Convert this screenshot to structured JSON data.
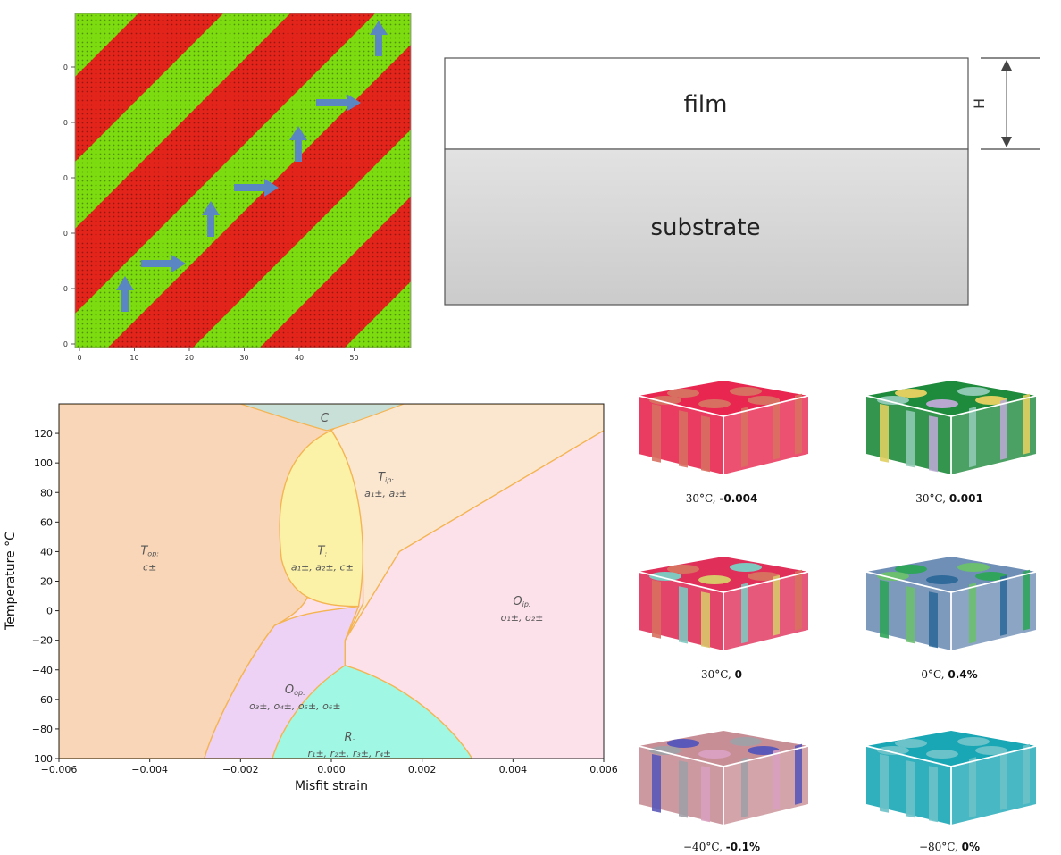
{
  "stripe_panel": {
    "x_ticks": [
      "0",
      "10",
      "20",
      "30",
      "40",
      "50"
    ],
    "y_ticks": [
      "0",
      "0",
      "0",
      "0",
      "0",
      "0",
      "0"
    ],
    "colors": {
      "red": "#e3241b",
      "green": "#7cdc10",
      "arrow": "#5a86c4"
    }
  },
  "schematic": {
    "film_label": "film",
    "substrate_label": "substrate",
    "thickness_label": "H",
    "colors": {
      "film": "#ffffff",
      "substrate": "#d5d5d5"
    }
  },
  "chart_data": {
    "type": "phase_diagram",
    "xlabel": "Misfit strain",
    "ylabel": "Temperature °C",
    "xlim": [
      -0.006,
      0.006
    ],
    "ylim": [
      -100,
      140
    ],
    "x_ticks": [
      "−0.006",
      "−0.004",
      "−0.002",
      "0.000",
      "0.002",
      "0.004",
      "0.006"
    ],
    "y_ticks": [
      "−100",
      "−80",
      "−60",
      "−40",
      "−20",
      "0",
      "20",
      "40",
      "60",
      "80",
      "100",
      "120"
    ],
    "phases": [
      {
        "name": "C",
        "sub": "",
        "line1": "",
        "color": "#c8e0d8"
      },
      {
        "name": "T",
        "sub": "op:",
        "line1": "c±",
        "color": "#f9d6b8"
      },
      {
        "name": "T",
        "sub": ":",
        "line1": "a₁±, a₂±, c±",
        "color": "#fbf2a8"
      },
      {
        "name": "T",
        "sub": "ip:",
        "line1": "a₁±, a₂±",
        "color": "#fbe7d0"
      },
      {
        "name": "O",
        "sub": "ip:",
        "line1": "o₁±, o₂±",
        "color": "#fce0ea"
      },
      {
        "name": "O",
        "sub": "op:",
        "line1": "o₃±, o₄±, o₅±, o₆±",
        "color": "#eed2f5"
      },
      {
        "name": "R",
        "sub": ":",
        "line1": "r₁±, r₂±, r₃±, r₄±",
        "color": "#a0f8e4"
      }
    ]
  },
  "simulations": [
    {
      "temp": "30°C,",
      "value": "-0.004",
      "palette": [
        "#e8264f",
        "#d87062"
      ]
    },
    {
      "temp": "30°C,",
      "value": "0.001",
      "palette": [
        "#1e8a3c",
        "#e0cf60",
        "#8fc9b4",
        "#b8a8d0"
      ]
    },
    {
      "temp": "30°C,",
      "value": "0",
      "palette": [
        "#e0305a",
        "#d8705f",
        "#7fc8c0",
        "#d8c86a"
      ]
    },
    {
      "temp": "0°C,",
      "value": "0.4%",
      "palette": [
        "#6f8fb6",
        "#2fa45a",
        "#6bbf6f",
        "#2f6a9a"
      ]
    },
    {
      "temp": "−40°C,",
      "value": "-0.1%",
      "palette": [
        "#c88e96",
        "#5a58b8",
        "#a0a0a6",
        "#d9a0c0"
      ]
    },
    {
      "temp": "−80°C,",
      "value": "0%",
      "palette": [
        "#19a6b5",
        "#6bc2c8"
      ]
    }
  ]
}
